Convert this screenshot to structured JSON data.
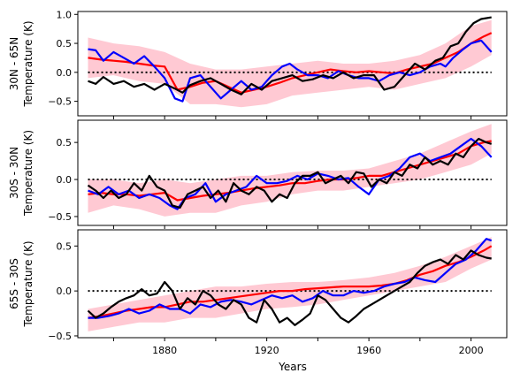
{
  "figure": {
    "xlabel": "Years",
    "colors": {
      "members": "#ffc0cb",
      "ensemble_mean": "#ff0000",
      "blue_series": "#0000ff",
      "black_series": "#000000",
      "zero_line": "#000000"
    }
  },
  "chart_data": [
    {
      "type": "line",
      "ylabel_top": "30N - 65N",
      "ylabel_bottom": "Temperature (K)",
      "xlim": [
        1846,
        2014
      ],
      "ylim": [
        -0.75,
        1.05
      ],
      "yticks": [
        -0.5,
        0.0,
        0.5,
        1.0
      ],
      "ytick_labels": [
        "−0.5",
        "0.0",
        "0.5",
        "1.0"
      ],
      "xticks": [
        1860,
        1880,
        1900,
        1920,
        1940,
        1960,
        1980,
        2000
      ],
      "xtick_labels": [],
      "zero_line": {
        "x": [
          1850,
          2008
        ],
        "y": 0
      },
      "members_band": {
        "x": [
          1850,
          1860,
          1870,
          1880,
          1890,
          1900,
          1910,
          1920,
          1930,
          1940,
          1950,
          1960,
          1970,
          1980,
          1990,
          2000,
          2008
        ],
        "low": [
          -0.1,
          -0.05,
          -0.15,
          -0.2,
          -0.55,
          -0.55,
          -0.6,
          -0.55,
          -0.4,
          -0.35,
          -0.3,
          -0.25,
          -0.3,
          -0.2,
          -0.1,
          0.1,
          0.3
        ],
        "high": [
          0.6,
          0.5,
          0.45,
          0.35,
          0.15,
          0.05,
          0.05,
          0.1,
          0.15,
          0.2,
          0.15,
          0.15,
          0.2,
          0.3,
          0.5,
          0.8,
          0.9
        ]
      },
      "series": [
        {
          "color": "red",
          "x": [
            1850,
            1855,
            1860,
            1865,
            1870,
            1875,
            1880,
            1885,
            1890,
            1895,
            1900,
            1905,
            1910,
            1915,
            1920,
            1925,
            1930,
            1935,
            1940,
            1945,
            1950,
            1955,
            1960,
            1965,
            1970,
            1975,
            1980,
            1985,
            1990,
            1995,
            2000,
            2005,
            2008
          ],
          "y": [
            0.25,
            0.22,
            0.2,
            0.18,
            0.15,
            0.12,
            0.1,
            -0.3,
            -0.25,
            -0.18,
            -0.15,
            -0.25,
            -0.35,
            -0.3,
            -0.25,
            -0.18,
            -0.1,
            -0.05,
            0.0,
            0.05,
            0.02,
            0.0,
            0.02,
            0.0,
            -0.02,
            0.05,
            0.1,
            0.15,
            0.25,
            0.35,
            0.5,
            0.62,
            0.68
          ]
        },
        {
          "color": "blue",
          "x": [
            1850,
            1853,
            1856,
            1860,
            1864,
            1868,
            1872,
            1876,
            1880,
            1884,
            1887,
            1890,
            1894,
            1898,
            1902,
            1906,
            1910,
            1914,
            1918,
            1922,
            1926,
            1929,
            1932,
            1936,
            1940,
            1944,
            1948,
            1952,
            1956,
            1960,
            1964,
            1968,
            1972,
            1976,
            1980,
            1984,
            1988,
            1990,
            1993,
            1997,
            2000,
            2004,
            2008
          ],
          "y": [
            0.4,
            0.38,
            0.2,
            0.35,
            0.25,
            0.15,
            0.28,
            0.1,
            -0.1,
            -0.45,
            -0.5,
            -0.1,
            -0.05,
            -0.25,
            -0.45,
            -0.3,
            -0.15,
            -0.3,
            -0.25,
            -0.05,
            0.1,
            0.15,
            0.05,
            -0.05,
            -0.05,
            -0.1,
            0.02,
            -0.05,
            -0.1,
            -0.1,
            -0.15,
            -0.05,
            0.0,
            -0.05,
            0.0,
            0.1,
            0.15,
            0.1,
            0.25,
            0.4,
            0.5,
            0.55,
            0.35
          ]
        },
        {
          "color": "black",
          "x": [
            1850,
            1853,
            1856,
            1860,
            1864,
            1868,
            1872,
            1876,
            1880,
            1884,
            1887,
            1890,
            1894,
            1898,
            1902,
            1906,
            1910,
            1914,
            1918,
            1922,
            1926,
            1930,
            1934,
            1938,
            1942,
            1946,
            1950,
            1954,
            1958,
            1962,
            1966,
            1970,
            1974,
            1978,
            1982,
            1986,
            1989,
            1992,
            1995,
            1998,
            2001,
            2004,
            2008
          ],
          "y": [
            -0.15,
            -0.2,
            -0.08,
            -0.2,
            -0.15,
            -0.25,
            -0.2,
            -0.3,
            -0.2,
            -0.28,
            -0.35,
            -0.22,
            -0.15,
            -0.1,
            -0.2,
            -0.3,
            -0.38,
            -0.2,
            -0.3,
            -0.15,
            -0.1,
            -0.05,
            -0.15,
            -0.12,
            -0.05,
            -0.1,
            0.0,
            -0.1,
            -0.05,
            -0.05,
            -0.3,
            -0.25,
            -0.05,
            0.15,
            0.05,
            0.2,
            0.25,
            0.45,
            0.5,
            0.7,
            0.85,
            0.92,
            0.95
          ]
        }
      ]
    },
    {
      "type": "line",
      "ylabel_top": "30S - 30N",
      "ylabel_bottom": "Temperature (K)",
      "xlim": [
        1846,
        2014
      ],
      "ylim": [
        -0.62,
        0.8
      ],
      "yticks": [
        -0.5,
        0.0,
        0.5
      ],
      "ytick_labels": [
        "−0.5",
        "0.0",
        "0.5"
      ],
      "xticks": [
        1860,
        1880,
        1900,
        1920,
        1940,
        1960,
        1980,
        2000
      ],
      "xtick_labels": [],
      "zero_line": {
        "x": [
          1850,
          2008
        ],
        "y": 0
      },
      "members_band": {
        "x": [
          1850,
          1860,
          1870,
          1880,
          1890,
          1900,
          1910,
          1920,
          1930,
          1940,
          1950,
          1960,
          1970,
          1980,
          1990,
          2000,
          2008
        ],
        "low": [
          -0.45,
          -0.35,
          -0.4,
          -0.5,
          -0.45,
          -0.45,
          -0.35,
          -0.3,
          -0.2,
          -0.15,
          -0.15,
          -0.1,
          -0.05,
          0.0,
          0.1,
          0.2,
          0.35
        ],
        "high": [
          0.0,
          0.0,
          -0.05,
          0.0,
          -0.05,
          0.0,
          0.05,
          0.05,
          0.1,
          0.12,
          0.12,
          0.15,
          0.25,
          0.35,
          0.5,
          0.65,
          0.75
        ]
      },
      "series": [
        {
          "color": "red",
          "x": [
            1850,
            1855,
            1860,
            1865,
            1870,
            1875,
            1880,
            1885,
            1890,
            1895,
            1900,
            1905,
            1910,
            1915,
            1920,
            1925,
            1930,
            1935,
            1940,
            1945,
            1950,
            1955,
            1960,
            1965,
            1970,
            1975,
            1980,
            1985,
            1990,
            1995,
            2000,
            2005,
            2008
          ],
          "y": [
            -0.2,
            -0.18,
            -0.2,
            -0.2,
            -0.22,
            -0.2,
            -0.18,
            -0.28,
            -0.25,
            -0.22,
            -0.2,
            -0.18,
            -0.15,
            -0.12,
            -0.1,
            -0.08,
            -0.05,
            -0.05,
            -0.02,
            0.0,
            0.0,
            0.02,
            0.05,
            0.05,
            0.1,
            0.15,
            0.2,
            0.25,
            0.3,
            0.35,
            0.45,
            0.5,
            0.52
          ]
        },
        {
          "color": "blue",
          "x": [
            1850,
            1854,
            1858,
            1862,
            1866,
            1870,
            1874,
            1878,
            1882,
            1885,
            1888,
            1892,
            1896,
            1900,
            1904,
            1908,
            1912,
            1916,
            1920,
            1924,
            1928,
            1932,
            1936,
            1940,
            1944,
            1948,
            1952,
            1956,
            1960,
            1964,
            1968,
            1972,
            1976,
            1980,
            1984,
            1988,
            1992,
            1996,
            2000,
            2004,
            2008
          ],
          "y": [
            -0.15,
            -0.2,
            -0.1,
            -0.2,
            -0.15,
            -0.25,
            -0.2,
            -0.25,
            -0.35,
            -0.4,
            -0.25,
            -0.2,
            -0.05,
            -0.3,
            -0.2,
            -0.15,
            -0.1,
            0.05,
            -0.05,
            -0.05,
            -0.02,
            0.05,
            0.0,
            0.08,
            0.05,
            0.0,
            0.02,
            -0.1,
            -0.2,
            0.0,
            0.05,
            0.15,
            0.3,
            0.35,
            0.25,
            0.3,
            0.35,
            0.45,
            0.55,
            0.45,
            0.3
          ]
        },
        {
          "color": "black",
          "x": [
            1850,
            1853,
            1856,
            1859,
            1862,
            1865,
            1868,
            1871,
            1874,
            1877,
            1880,
            1883,
            1886,
            1889,
            1892,
            1895,
            1898,
            1901,
            1904,
            1907,
            1910,
            1913,
            1916,
            1919,
            1922,
            1925,
            1928,
            1931,
            1934,
            1937,
            1940,
            1943,
            1946,
            1949,
            1952,
            1955,
            1958,
            1961,
            1964,
            1967,
            1970,
            1973,
            1976,
            1979,
            1982,
            1985,
            1988,
            1991,
            1994,
            1997,
            2000,
            2003,
            2006,
            2008
          ],
          "y": [
            -0.08,
            -0.15,
            -0.25,
            -0.15,
            -0.25,
            -0.2,
            -0.05,
            -0.15,
            0.05,
            -0.1,
            -0.15,
            -0.35,
            -0.38,
            -0.2,
            -0.15,
            -0.1,
            -0.25,
            -0.15,
            -0.3,
            -0.05,
            -0.15,
            -0.2,
            -0.1,
            -0.15,
            -0.3,
            -0.2,
            -0.25,
            -0.05,
            0.05,
            0.05,
            0.1,
            -0.05,
            0.0,
            0.05,
            -0.05,
            0.1,
            0.08,
            -0.1,
            0.0,
            -0.05,
            0.1,
            0.05,
            0.2,
            0.15,
            0.3,
            0.2,
            0.25,
            0.2,
            0.35,
            0.3,
            0.45,
            0.55,
            0.5,
            0.48
          ]
        }
      ]
    },
    {
      "type": "line",
      "ylabel_top": "65S - 30S",
      "ylabel_bottom": "Temperature (K)",
      "xlim": [
        1846,
        2014
      ],
      "ylim": [
        -0.52,
        0.68
      ],
      "yticks": [
        -0.5,
        0.0,
        0.5
      ],
      "ytick_labels": [
        "−0.5",
        "0.0",
        "0.5"
      ],
      "xticks": [
        1860,
        1880,
        1900,
        1920,
        1940,
        1960,
        1980,
        2000
      ],
      "xtick_labels": [
        "1880",
        "1920",
        "1960",
        "2000"
      ],
      "xtick_label_values": [
        1880,
        1920,
        1960,
        2000
      ],
      "zero_line": {
        "x": [
          1850,
          2008
        ],
        "y": 0
      },
      "members_band": {
        "x": [
          1850,
          1860,
          1870,
          1880,
          1890,
          1900,
          1910,
          1920,
          1930,
          1940,
          1950,
          1960,
          1970,
          1980,
          1990,
          2000,
          2008
        ],
        "low": [
          -0.45,
          -0.4,
          -0.35,
          -0.35,
          -0.3,
          -0.3,
          -0.25,
          -0.2,
          -0.18,
          -0.15,
          -0.1,
          -0.05,
          0.0,
          0.05,
          0.1,
          0.25,
          0.35
        ],
        "high": [
          -0.2,
          -0.15,
          -0.1,
          -0.05,
          0.0,
          0.05,
          0.05,
          0.08,
          0.1,
          0.1,
          0.12,
          0.15,
          0.2,
          0.28,
          0.38,
          0.5,
          0.6
        ]
      },
      "series": [
        {
          "color": "red",
          "x": [
            1850,
            1855,
            1860,
            1865,
            1870,
            1875,
            1880,
            1885,
            1890,
            1895,
            1900,
            1905,
            1910,
            1915,
            1920,
            1925,
            1930,
            1935,
            1940,
            1945,
            1950,
            1955,
            1960,
            1965,
            1970,
            1975,
            1980,
            1985,
            1990,
            1995,
            2000,
            2005,
            2008
          ],
          "y": [
            -0.3,
            -0.28,
            -0.25,
            -0.22,
            -0.2,
            -0.18,
            -0.18,
            -0.15,
            -0.12,
            -0.12,
            -0.1,
            -0.08,
            -0.06,
            -0.04,
            -0.02,
            0.0,
            0.0,
            0.02,
            0.03,
            0.04,
            0.05,
            0.05,
            0.05,
            0.06,
            0.08,
            0.12,
            0.18,
            0.22,
            0.28,
            0.32,
            0.38,
            0.45,
            0.5
          ]
        },
        {
          "color": "blue",
          "x": [
            1850,
            1854,
            1858,
            1862,
            1866,
            1870,
            1874,
            1878,
            1882,
            1886,
            1890,
            1894,
            1898,
            1902,
            1906,
            1910,
            1914,
            1918,
            1922,
            1926,
            1930,
            1934,
            1938,
            1942,
            1946,
            1950,
            1954,
            1958,
            1962,
            1966,
            1970,
            1974,
            1978,
            1982,
            1986,
            1990,
            1994,
            1998,
            2002,
            2006,
            2008
          ],
          "y": [
            -0.3,
            -0.3,
            -0.28,
            -0.25,
            -0.2,
            -0.25,
            -0.22,
            -0.15,
            -0.2,
            -0.2,
            -0.25,
            -0.15,
            -0.18,
            -0.12,
            -0.1,
            -0.12,
            -0.15,
            -0.1,
            -0.05,
            -0.08,
            -0.05,
            -0.12,
            -0.08,
            0.0,
            -0.05,
            -0.05,
            0.0,
            -0.02,
            0.0,
            0.05,
            0.08,
            0.1,
            0.15,
            0.12,
            0.1,
            0.2,
            0.3,
            0.35,
            0.45,
            0.58,
            0.56
          ]
        },
        {
          "color": "black",
          "x": [
            1850,
            1853,
            1856,
            1859,
            1862,
            1865,
            1868,
            1871,
            1874,
            1877,
            1880,
            1883,
            1886,
            1889,
            1892,
            1895,
            1898,
            1901,
            1904,
            1907,
            1910,
            1913,
            1916,
            1919,
            1922,
            1925,
            1928,
            1931,
            1934,
            1937,
            1940,
            1943,
            1946,
            1949,
            1952,
            1955,
            1958,
            1961,
            1964,
            1967,
            1970,
            1973,
            1976,
            1979,
            1982,
            1985,
            1988,
            1991,
            1994,
            1997,
            2000,
            2003,
            2006,
            2008
          ],
          "y": [
            -0.22,
            -0.3,
            -0.25,
            -0.18,
            -0.12,
            -0.08,
            -0.05,
            0.02,
            -0.05,
            -0.03,
            0.1,
            0.0,
            -0.2,
            -0.08,
            -0.15,
            0.0,
            -0.05,
            -0.15,
            -0.2,
            -0.1,
            -0.15,
            -0.3,
            -0.35,
            -0.1,
            -0.2,
            -0.35,
            -0.3,
            -0.38,
            -0.32,
            -0.25,
            -0.05,
            -0.1,
            -0.2,
            -0.3,
            -0.35,
            -0.28,
            -0.2,
            -0.15,
            -0.1,
            -0.05,
            0.0,
            0.05,
            0.1,
            0.2,
            0.28,
            0.32,
            0.35,
            0.3,
            0.4,
            0.35,
            0.45,
            0.4,
            0.37,
            0.36
          ]
        }
      ]
    }
  ]
}
